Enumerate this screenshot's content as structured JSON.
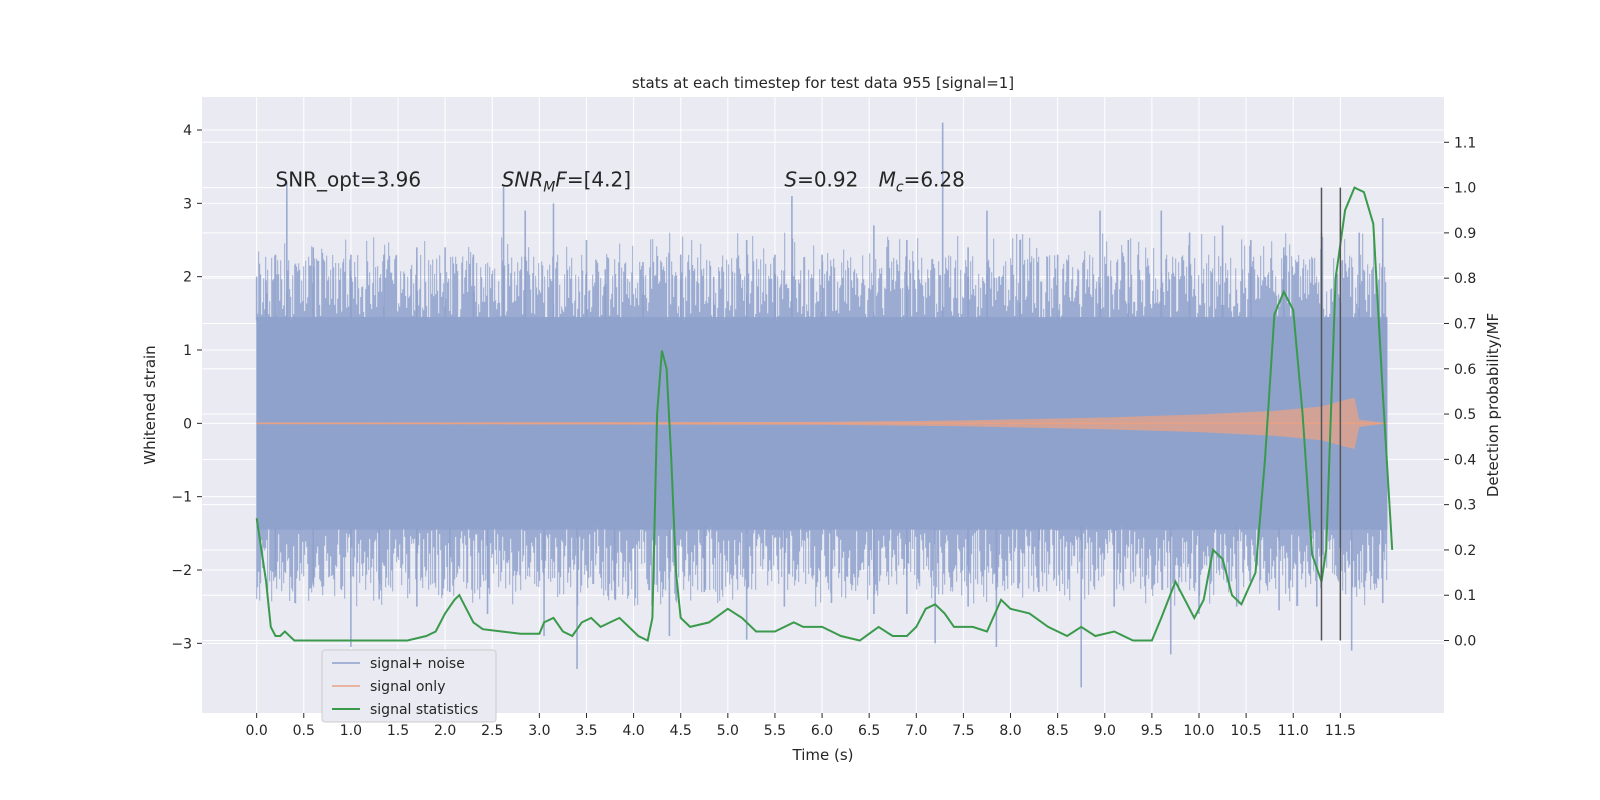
{
  "chart_data": {
    "type": "line",
    "title": "stats at each timestep for test data 955 [signal=1]",
    "xlabel": "Time (s)",
    "ylabel": "Whitened strain",
    "y2label": "Detection probability/MF",
    "xlim": [
      -0.58,
      12.6
    ],
    "ylim": [
      -3.95,
      4.45
    ],
    "y2lim": [
      -0.16,
      1.2
    ],
    "x_ticks": [
      0.0,
      0.5,
      1.0,
      1.5,
      2.0,
      2.5,
      3.0,
      3.5,
      4.0,
      4.5,
      5.0,
      5.5,
      6.0,
      6.5,
      7.0,
      7.5,
      8.0,
      8.5,
      9.0,
      9.5,
      10.0,
      10.5,
      11.0,
      11.5
    ],
    "x_tick_labels": [
      "0.0",
      "0.5",
      "1.0",
      "1.5",
      "2.0",
      "2.5",
      "3.0",
      "3.5",
      "4.0",
      "4.5",
      "5.0",
      "5.5",
      "6.0",
      "6.5",
      "7.0",
      "7.5",
      "8.0",
      "8.5",
      "9.0",
      "9.5",
      "10.0",
      "10.5",
      "11.0",
      "11.5"
    ],
    "y_ticks": [
      -3,
      -2,
      -1,
      0,
      1,
      2,
      3,
      4
    ],
    "y_tick_labels": [
      "−3",
      "−2",
      "−1",
      "0",
      "1",
      "2",
      "3",
      "4"
    ],
    "y2_ticks": [
      0.0,
      0.1,
      0.2,
      0.3,
      0.4,
      0.5,
      0.6,
      0.7,
      0.8,
      0.9,
      1.0,
      1.1
    ],
    "y2_tick_labels": [
      "0.0",
      "0.1",
      "0.2",
      "0.3",
      "0.4",
      "0.5",
      "0.6",
      "0.7",
      "0.8",
      "0.9",
      "1.0",
      "1.1"
    ],
    "grid": true,
    "legend_position": "lower-left",
    "annotations": [
      {
        "kind": "plain",
        "x": 0.2,
        "y": 3.3,
        "text": "SNR_opt=3.96"
      },
      {
        "kind": "snrmf",
        "x": 2.6,
        "y": 3.3,
        "main": "SNR",
        "sub": "M",
        "rest": "F=[4.2]"
      },
      {
        "kind": "italic_eq",
        "x": 5.6,
        "y": 3.3,
        "sym": "S",
        "rest": "=0.92"
      },
      {
        "kind": "mc",
        "x": 6.6,
        "y": 3.3,
        "sym": "M",
        "sub": "c",
        "rest": "=6.28"
      }
    ],
    "series": [
      {
        "name": "signal+ noise",
        "color": "#8da0cb",
        "opacity": 0.85,
        "t_range": [
          0.0,
          12.0
        ],
        "core_band": 1.45,
        "peaks": [
          {
            "x": 0.0,
            "y": 2.0
          },
          {
            "x": 0.1,
            "y": 1.95
          },
          {
            "x": 0.2,
            "y": 2.3
          },
          {
            "x": 0.32,
            "y": 3.3
          },
          {
            "x": 0.6,
            "y": 2.4
          },
          {
            "x": 1.0,
            "y": 2.3
          },
          {
            "x": 1.35,
            "y": 2.3
          },
          {
            "x": 1.7,
            "y": 2.4
          },
          {
            "x": 2.0,
            "y": 2.4
          },
          {
            "x": 2.3,
            "y": 2.3
          },
          {
            "x": 2.62,
            "y": 3.25
          },
          {
            "x": 2.85,
            "y": 2.9
          },
          {
            "x": 3.15,
            "y": 3.0
          },
          {
            "x": 3.5,
            "y": 2.5
          },
          {
            "x": 3.7,
            "y": 2.1
          },
          {
            "x": 4.1,
            "y": 2.2
          },
          {
            "x": 4.5,
            "y": 2.3
          },
          {
            "x": 4.85,
            "y": 2.0
          },
          {
            "x": 5.2,
            "y": 2.5
          },
          {
            "x": 5.5,
            "y": 2.3
          },
          {
            "x": 5.68,
            "y": 3.1
          },
          {
            "x": 6.0,
            "y": 2.3
          },
          {
            "x": 6.55,
            "y": 2.7
          },
          {
            "x": 6.9,
            "y": 2.5
          },
          {
            "x": 7.28,
            "y": 4.1
          },
          {
            "x": 7.55,
            "y": 2.4
          },
          {
            "x": 7.75,
            "y": 2.9
          },
          {
            "x": 8.1,
            "y": 2.5
          },
          {
            "x": 8.5,
            "y": 2.3
          },
          {
            "x": 8.95,
            "y": 2.9
          },
          {
            "x": 9.25,
            "y": 2.5
          },
          {
            "x": 9.6,
            "y": 2.9
          },
          {
            "x": 9.9,
            "y": 2.6
          },
          {
            "x": 10.25,
            "y": 2.7
          },
          {
            "x": 10.55,
            "y": 2.5
          },
          {
            "x": 10.9,
            "y": 2.4
          },
          {
            "x": 11.3,
            "y": 2.6
          },
          {
            "x": 11.7,
            "y": 2.6
          },
          {
            "x": 11.95,
            "y": 2.8
          }
        ],
        "troughs": [
          {
            "x": 0.2,
            "y": -2.0
          },
          {
            "x": 0.6,
            "y": -2.2
          },
          {
            "x": 1.0,
            "y": -3.05
          },
          {
            "x": 1.3,
            "y": -2.4
          },
          {
            "x": 1.7,
            "y": -2.5
          },
          {
            "x": 2.05,
            "y": -2.3
          },
          {
            "x": 2.45,
            "y": -2.6
          },
          {
            "x": 3.05,
            "y": -2.9
          },
          {
            "x": 3.4,
            "y": -3.35
          },
          {
            "x": 3.8,
            "y": -2.4
          },
          {
            "x": 4.38,
            "y": -2.9
          },
          {
            "x": 4.75,
            "y": -2.3
          },
          {
            "x": 5.2,
            "y": -2.95
          },
          {
            "x": 5.6,
            "y": -2.5
          },
          {
            "x": 6.1,
            "y": -2.45
          },
          {
            "x": 6.55,
            "y": -2.6
          },
          {
            "x": 6.9,
            "y": -2.6
          },
          {
            "x": 7.2,
            "y": -3.0
          },
          {
            "x": 7.55,
            "y": -2.5
          },
          {
            "x": 7.85,
            "y": -3.05
          },
          {
            "x": 8.3,
            "y": -2.3
          },
          {
            "x": 8.75,
            "y": -3.6
          },
          {
            "x": 9.1,
            "y": -2.5
          },
          {
            "x": 9.7,
            "y": -3.15
          },
          {
            "x": 10.0,
            "y": -2.6
          },
          {
            "x": 10.4,
            "y": -2.5
          },
          {
            "x": 10.85,
            "y": -2.55
          },
          {
            "x": 11.25,
            "y": -2.5
          },
          {
            "x": 11.62,
            "y": -3.1
          },
          {
            "x": 11.95,
            "y": -2.45
          }
        ]
      },
      {
        "name": "signal only",
        "color": "#e8a184",
        "envelope": [
          {
            "x": 0.0,
            "y": 0.01
          },
          {
            "x": 6.0,
            "y": 0.02
          },
          {
            "x": 7.5,
            "y": 0.04
          },
          {
            "x": 9.0,
            "y": 0.08
          },
          {
            "x": 10.0,
            "y": 0.12
          },
          {
            "x": 10.8,
            "y": 0.17
          },
          {
            "x": 11.3,
            "y": 0.23
          },
          {
            "x": 11.55,
            "y": 0.32
          },
          {
            "x": 11.65,
            "y": 0.35
          },
          {
            "x": 11.7,
            "y": 0.05
          },
          {
            "x": 12.0,
            "y": 0.0
          }
        ]
      },
      {
        "name": "signal statistics",
        "color": "#3a9a4c",
        "axis": "right",
        "points": [
          [
            0.0,
            0.27
          ],
          [
            0.1,
            0.13
          ],
          [
            0.15,
            0.03
          ],
          [
            0.2,
            0.01
          ],
          [
            0.25,
            0.01
          ],
          [
            0.3,
            0.02
          ],
          [
            0.4,
            0.0
          ],
          [
            0.5,
            0.0
          ],
          [
            0.6,
            0.0
          ],
          [
            0.7,
            0.0
          ],
          [
            0.8,
            0.0
          ],
          [
            1.0,
            0.0
          ],
          [
            1.2,
            0.0
          ],
          [
            1.4,
            0.0
          ],
          [
            1.6,
            0.0
          ],
          [
            1.8,
            0.01
          ],
          [
            1.9,
            0.02
          ],
          [
            2.0,
            0.06
          ],
          [
            2.1,
            0.09
          ],
          [
            2.15,
            0.1
          ],
          [
            2.2,
            0.08
          ],
          [
            2.3,
            0.04
          ],
          [
            2.4,
            0.025
          ],
          [
            2.6,
            0.02
          ],
          [
            2.8,
            0.015
          ],
          [
            3.0,
            0.015
          ],
          [
            3.05,
            0.04
          ],
          [
            3.15,
            0.05
          ],
          [
            3.25,
            0.02
          ],
          [
            3.35,
            0.01
          ],
          [
            3.45,
            0.04
          ],
          [
            3.55,
            0.05
          ],
          [
            3.65,
            0.03
          ],
          [
            3.75,
            0.04
          ],
          [
            3.85,
            0.05
          ],
          [
            3.95,
            0.03
          ],
          [
            4.05,
            0.01
          ],
          [
            4.15,
            0.0
          ],
          [
            4.2,
            0.05
          ],
          [
            4.25,
            0.5
          ],
          [
            4.3,
            0.64
          ],
          [
            4.35,
            0.6
          ],
          [
            4.4,
            0.4
          ],
          [
            4.45,
            0.15
          ],
          [
            4.5,
            0.05
          ],
          [
            4.6,
            0.03
          ],
          [
            4.8,
            0.04
          ],
          [
            5.0,
            0.07
          ],
          [
            5.15,
            0.05
          ],
          [
            5.3,
            0.02
          ],
          [
            5.5,
            0.02
          ],
          [
            5.7,
            0.04
          ],
          [
            5.8,
            0.03
          ],
          [
            6.0,
            0.03
          ],
          [
            6.2,
            0.01
          ],
          [
            6.4,
            0.0
          ],
          [
            6.6,
            0.03
          ],
          [
            6.75,
            0.01
          ],
          [
            6.9,
            0.01
          ],
          [
            7.0,
            0.03
          ],
          [
            7.1,
            0.07
          ],
          [
            7.2,
            0.08
          ],
          [
            7.3,
            0.06
          ],
          [
            7.4,
            0.03
          ],
          [
            7.6,
            0.03
          ],
          [
            7.75,
            0.02
          ],
          [
            7.9,
            0.09
          ],
          [
            8.0,
            0.07
          ],
          [
            8.2,
            0.06
          ],
          [
            8.4,
            0.03
          ],
          [
            8.6,
            0.01
          ],
          [
            8.75,
            0.03
          ],
          [
            8.9,
            0.01
          ],
          [
            9.1,
            0.02
          ],
          [
            9.3,
            0.0
          ],
          [
            9.5,
            0.0
          ],
          [
            9.6,
            0.05
          ],
          [
            9.75,
            0.13
          ],
          [
            9.85,
            0.09
          ],
          [
            9.95,
            0.05
          ],
          [
            10.05,
            0.09
          ],
          [
            10.15,
            0.2
          ],
          [
            10.25,
            0.18
          ],
          [
            10.35,
            0.1
          ],
          [
            10.45,
            0.08
          ],
          [
            10.6,
            0.15
          ],
          [
            10.7,
            0.4
          ],
          [
            10.8,
            0.72
          ],
          [
            10.9,
            0.77
          ],
          [
            11.0,
            0.73
          ],
          [
            11.1,
            0.5
          ],
          [
            11.2,
            0.19
          ],
          [
            11.3,
            0.13
          ],
          [
            11.35,
            0.2
          ],
          [
            11.45,
            0.8
          ],
          [
            11.55,
            0.95
          ],
          [
            11.65,
            1.0
          ],
          [
            11.75,
            0.99
          ],
          [
            11.85,
            0.92
          ],
          [
            11.95,
            0.55
          ],
          [
            12.05,
            0.2
          ]
        ]
      }
    ],
    "vlines": [
      {
        "x": 11.3,
        "y2_from": 0.0,
        "y2_to": 1.0
      },
      {
        "x": 11.5,
        "y2_from": 0.0,
        "y2_to": 1.0
      }
    ],
    "legend": [
      {
        "label": "signal+ noise",
        "color": "#8da0cb"
      },
      {
        "label": "signal only",
        "color": "#e8a184"
      },
      {
        "label": "signal statistics",
        "color": "#3a9a4c"
      }
    ]
  }
}
